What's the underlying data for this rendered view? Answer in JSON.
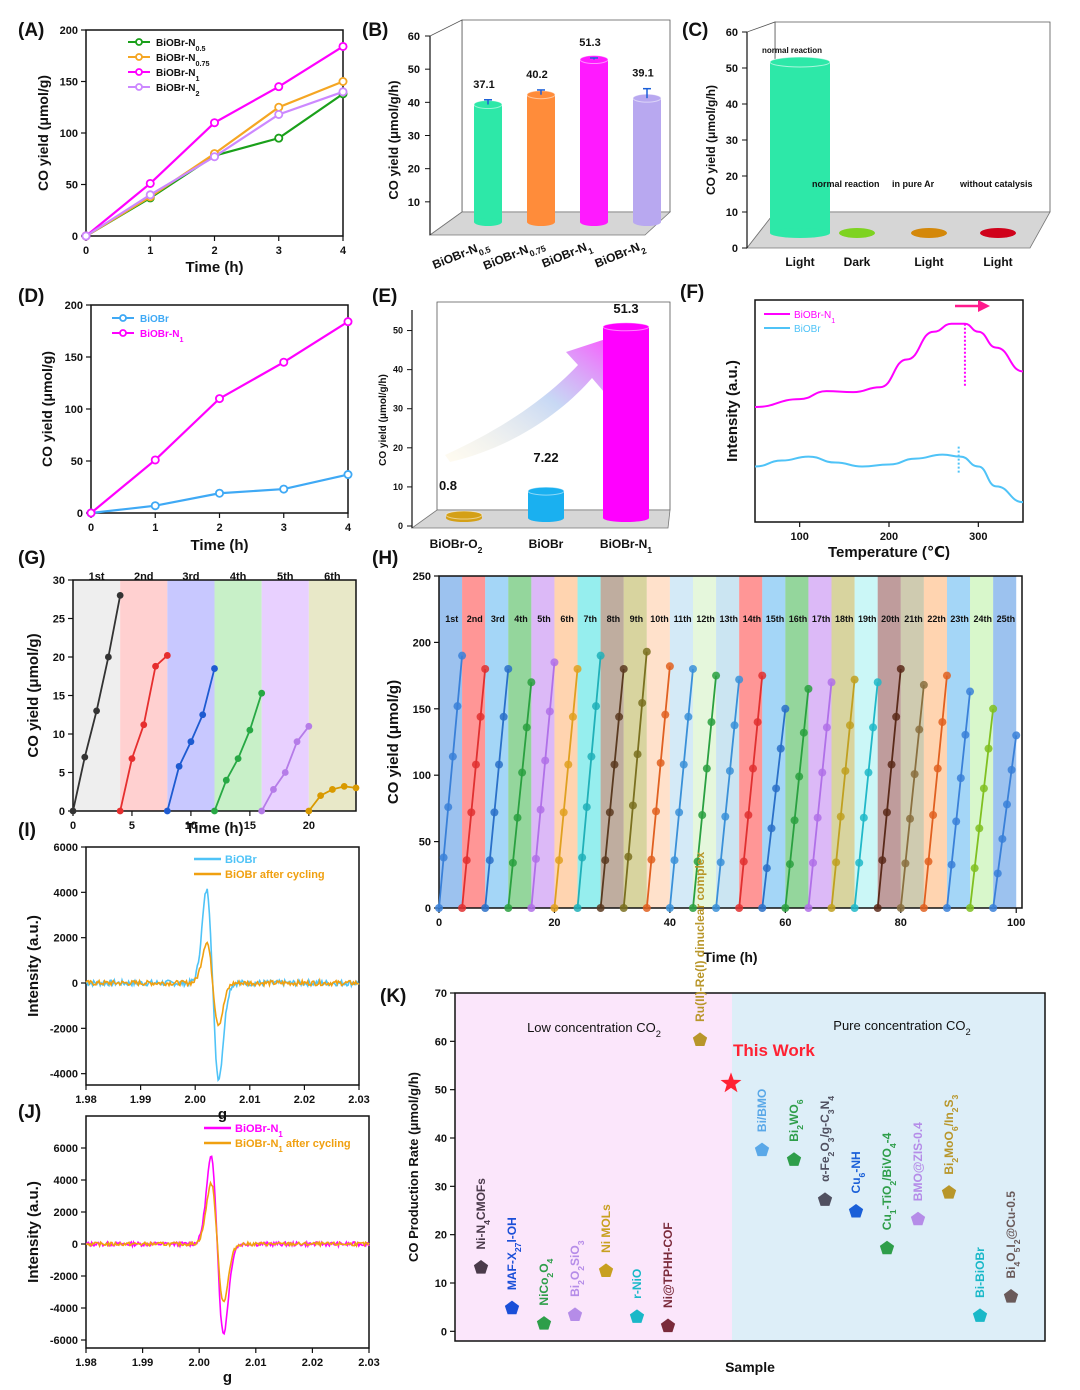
{
  "figure": {
    "panel_labels": [
      "(A)",
      "(B)",
      "(C)",
      "(D)",
      "(E)",
      "(F)",
      "(G)",
      "(H)",
      "(I)",
      "(J)",
      "(K)"
    ]
  },
  "chart_data": [
    {
      "id": "A",
      "type": "line",
      "xlabel": "Time (h)",
      "ylabel": "CO yield (μmol/g)",
      "xlim": [
        0,
        4
      ],
      "ylim": [
        0,
        200
      ],
      "xticks": [
        0,
        1,
        2,
        3,
        4
      ],
      "yticks": [
        0,
        50,
        100,
        150,
        200
      ],
      "legend_position": "top-left",
      "series": [
        {
          "name": "BiOBr-N0.5",
          "color": "#1aa01a",
          "x": [
            0,
            1,
            2,
            3,
            4
          ],
          "values": [
            0,
            37,
            78,
            95,
            138
          ]
        },
        {
          "name": "BiOBr-N0.75",
          "color": "#f5a623",
          "x": [
            0,
            1,
            2,
            3,
            4
          ],
          "values": [
            0,
            38,
            80,
            125,
            150
          ]
        },
        {
          "name": "BiOBr-N1",
          "color": "#ff00ff",
          "x": [
            0,
            1,
            2,
            3,
            4
          ],
          "values": [
            0,
            51,
            110,
            145,
            184
          ]
        },
        {
          "name": "BiOBr-N2",
          "color": "#cc88ff",
          "x": [
            0,
            1,
            2,
            3,
            4
          ],
          "values": [
            0,
            40,
            77,
            118,
            140
          ]
        }
      ]
    },
    {
      "id": "B",
      "type": "bar",
      "ylabel": "CO yield (μmol/g/h)",
      "ylim": [
        0,
        60
      ],
      "yticks": [
        10,
        20,
        30,
        40,
        50,
        60
      ],
      "categories": [
        "BiOBr-N0.5",
        "BiOBr-N0.75",
        "BiOBr-N1",
        "BiOBr-N2"
      ],
      "values": [
        37.1,
        40.2,
        51.3,
        39.1
      ],
      "errors": [
        1.5,
        1.5,
        0.5,
        3
      ],
      "data_labels": [
        "37.1",
        "40.2",
        "51.3",
        "39.1"
      ],
      "colors": [
        "#2de8a8",
        "#ff8c3a",
        "#ff1aff",
        "#b8a8f0"
      ]
    },
    {
      "id": "C",
      "type": "bar",
      "ylabel": "CO yield (μmol/g/h)",
      "ylim": [
        0,
        60
      ],
      "yticks": [
        0,
        10,
        20,
        30,
        40,
        50,
        60
      ],
      "categories": [
        "Light",
        "Dark",
        "Light",
        "Light"
      ],
      "values": [
        51.3,
        0,
        0,
        0
      ],
      "annotations": [
        "normal reaction",
        "normal reaction",
        "in pure Ar",
        "without catalysis"
      ],
      "colors": [
        "#2de8a8",
        "#7ed321",
        "#d4880a",
        "#d0021b"
      ]
    },
    {
      "id": "D",
      "type": "line",
      "xlabel": "Time (h)",
      "ylabel": "CO yield (μmol/g)",
      "xlim": [
        0,
        4
      ],
      "ylim": [
        0,
        200
      ],
      "xticks": [
        0,
        1,
        2,
        3,
        4
      ],
      "yticks": [
        0,
        50,
        100,
        150,
        200
      ],
      "legend_position": "top-left",
      "series": [
        {
          "name": "BiOBr",
          "color": "#3fa9f5",
          "x": [
            0,
            1,
            2,
            3,
            4
          ],
          "values": [
            0,
            7,
            19,
            23,
            37
          ]
        },
        {
          "name": "BiOBr-N1",
          "color": "#ff00ff",
          "x": [
            0,
            1,
            2,
            3,
            4
          ],
          "values": [
            0,
            51,
            110,
            145,
            184
          ]
        }
      ]
    },
    {
      "id": "E",
      "type": "bar",
      "ylabel": "CO yield (μmol/g/h)",
      "ylim": [
        0,
        55
      ],
      "yticks": [
        0,
        10,
        20,
        30,
        40,
        50
      ],
      "categories": [
        "BiOBr-O2",
        "BiOBr",
        "BiOBr-N1"
      ],
      "values": [
        0.8,
        7.22,
        51.3
      ],
      "data_labels": [
        "0.8",
        "7.22",
        "51.3"
      ],
      "colors": [
        "#d4a017",
        "#1ab0f0",
        "#ff00ff"
      ]
    },
    {
      "id": "F",
      "type": "line",
      "xlabel": "Temperature (℃)",
      "ylabel": "Intensity (a.u.)",
      "xlim": [
        50,
        350
      ],
      "xticks": [
        100,
        200,
        300
      ],
      "legend_position": "top-left",
      "series": [
        {
          "name": "BiOBr-N1",
          "color": "#ff00ff",
          "x": [
            50,
            100,
            130,
            160,
            190,
            220,
            250,
            270,
            285,
            300,
            320,
            350
          ],
          "values": [
            0.58,
            0.62,
            0.66,
            0.655,
            0.68,
            0.82,
            0.96,
            1.0,
            1.0,
            0.96,
            0.88,
            0.76
          ]
        },
        {
          "name": "BiOBr",
          "color": "#4fc3f7",
          "x": [
            50,
            80,
            110,
            140,
            170,
            200,
            230,
            260,
            280,
            300,
            320,
            350
          ],
          "values": [
            0.28,
            0.31,
            0.33,
            0.3,
            0.28,
            0.29,
            0.32,
            0.34,
            0.33,
            0.28,
            0.18,
            0.1
          ]
        }
      ]
    },
    {
      "id": "G",
      "type": "line",
      "xlabel": "Time (h)",
      "ylabel": "CO yield (μmol/g)",
      "xlim": [
        0,
        24
      ],
      "ylim": [
        0,
        30
      ],
      "xticks": [
        0,
        5,
        10,
        15,
        20
      ],
      "yticks": [
        0,
        5,
        10,
        15,
        20,
        25,
        30
      ],
      "cycle_labels": [
        "1st",
        "2nd",
        "3rd",
        "4th",
        "5th",
        "6th"
      ],
      "series": [
        {
          "name": "1st",
          "color": "#333333",
          "x": [
            0,
            1,
            2,
            3,
            4
          ],
          "values": [
            0,
            7,
            13,
            20,
            28
          ]
        },
        {
          "name": "2nd",
          "color": "#e62e2e",
          "x": [
            4,
            5,
            6,
            7,
            8
          ],
          "values": [
            0,
            6.8,
            11.2,
            18.8,
            20.2
          ]
        },
        {
          "name": "3rd",
          "color": "#1e5bd1",
          "x": [
            8,
            9,
            10,
            11,
            12
          ],
          "values": [
            0,
            5.8,
            9,
            12.5,
            18.5
          ]
        },
        {
          "name": "4th",
          "color": "#27a844",
          "x": [
            12,
            13,
            14,
            15,
            16
          ],
          "values": [
            0,
            4,
            6.8,
            10.5,
            15.3
          ]
        },
        {
          "name": "5th",
          "color": "#b57ce8",
          "x": [
            16,
            17,
            18,
            19,
            20
          ],
          "values": [
            0,
            2.8,
            5,
            9,
            11
          ]
        },
        {
          "name": "6th",
          "color": "#d99a00",
          "x": [
            20,
            21,
            22,
            23,
            24
          ],
          "values": [
            0,
            2,
            2.8,
            3.2,
            3
          ]
        }
      ]
    },
    {
      "id": "H",
      "type": "line",
      "xlabel": "Time (h)",
      "ylabel": "CO yield (μmol/g)",
      "xlim": [
        0,
        101
      ],
      "ylim": [
        0,
        250
      ],
      "xticks": [
        0,
        20,
        40,
        60,
        80,
        100
      ],
      "yticks": [
        0,
        50,
        100,
        150,
        200,
        250
      ],
      "cycle_labels": [
        "1st",
        "2nd",
        "3rd",
        "4th",
        "5th",
        "6th",
        "7th",
        "8th",
        "9th",
        "10th",
        "11th",
        "12th",
        "13th",
        "14th",
        "15th",
        "16th",
        "17th",
        "18th",
        "19th",
        "20th",
        "21th",
        "22th",
        "23th",
        "24th",
        "25th"
      ],
      "cycle_end_values": [
        190,
        180,
        180,
        170,
        185,
        180,
        190,
        180,
        193,
        182,
        180,
        175,
        172,
        175,
        150,
        165,
        170,
        172,
        170,
        180,
        168,
        175,
        163,
        150,
        130
      ]
    },
    {
      "id": "I",
      "type": "line",
      "xlabel": "g",
      "ylabel": "Intensity (a.u.)",
      "xlim": [
        1.98,
        2.03
      ],
      "ylim": [
        -4500,
        6000
      ],
      "xticks": [
        1.98,
        1.99,
        2.0,
        2.01,
        2.02,
        2.03
      ],
      "yticks": [
        -4000,
        -2000,
        0,
        2000,
        4000,
        6000
      ],
      "legend_position": "top-right",
      "series": [
        {
          "name": "BiOBr",
          "color": "#4fc3f7",
          "peak_max": 4100,
          "peak_min": -4200
        },
        {
          "name": "BiOBr after cycling",
          "color": "#f0a010",
          "peak_max": 1800,
          "peak_min": -1800
        }
      ]
    },
    {
      "id": "J",
      "type": "line",
      "xlabel": "g",
      "ylabel": "Intensity (a.u.)",
      "xlim": [
        1.98,
        2.03
      ],
      "ylim": [
        -6500,
        8000
      ],
      "xticks": [
        1.98,
        1.99,
        2.0,
        2.01,
        2.02,
        2.03
      ],
      "yticks": [
        -6000,
        -4000,
        -2000,
        0,
        2000,
        4000,
        6000
      ],
      "legend_position": "top-right",
      "series": [
        {
          "name": "BiOBr-N1",
          "color": "#ff00ff",
          "peak_max": 5400,
          "peak_min": -5600
        },
        {
          "name": "BiOBr-N1 after cycling",
          "color": "#f0a010",
          "peak_max": 3800,
          "peak_min": -3600
        }
      ]
    },
    {
      "id": "K",
      "type": "scatter",
      "xlabel": "Sample",
      "ylabel": "CO Production Rate (μmol/g/h)",
      "ylim": [
        -2,
        70
      ],
      "yticks": [
        0,
        10,
        20,
        30,
        40,
        50,
        60,
        70
      ],
      "regions": [
        "Low concentration CO2",
        "Pure concentration CO2"
      ],
      "highlight": "This Work",
      "points": [
        {
          "label": "Ni-N4CMOFs",
          "value": 13.2,
          "color": "#4a3a4a"
        },
        {
          "label": "MAF-X27l-OH",
          "value": 4.8,
          "color": "#1a4fd8"
        },
        {
          "label": "NiCo2O4",
          "value": 1.6,
          "color": "#2e9e4a"
        },
        {
          "label": "Bi2O2SiO3",
          "value": 3.4,
          "color": "#b58ce8"
        },
        {
          "label": "Ni MOLs",
          "value": 12.5,
          "color": "#c8a020"
        },
        {
          "label": "r-NiO",
          "value": 3.0,
          "color": "#1ab8c8"
        },
        {
          "label": "Ni@TPHH-COF",
          "value": 1.1,
          "color": "#7a2a3a"
        },
        {
          "label": "Ru(II)-Re(I) dinuclear complex",
          "value": 60.3,
          "color": "#b8962a"
        },
        {
          "label": "This Work",
          "value": 51.3,
          "color": "#ff2233"
        },
        {
          "label": "Bi/BMO",
          "value": 37.5,
          "color": "#5aa8e8"
        },
        {
          "label": "Bi2WO6",
          "value": 35.5,
          "color": "#2e9e4a"
        },
        {
          "label": "α-Fe2O3/g-C3N4",
          "value": 27.2,
          "color": "#505060"
        },
        {
          "label": "Cu6-NH",
          "value": 24.8,
          "color": "#1a5fd8"
        },
        {
          "label": "Cu1-TiO2/BiVO4-4",
          "value": 17.2,
          "color": "#2e9e4a"
        },
        {
          "label": "BMO@ZIS-0.4",
          "value": 23.2,
          "color": "#b58ce8"
        },
        {
          "label": "Bi2MoO6/In2S3",
          "value": 28.7,
          "color": "#b8962a"
        },
        {
          "label": "Bi-BiOBr",
          "value": 3.2,
          "color": "#1ab8c8"
        },
        {
          "label": "Bi4O5I2@Cu-0.5",
          "value": 7.2,
          "color": "#6a5a5a"
        }
      ]
    }
  ]
}
